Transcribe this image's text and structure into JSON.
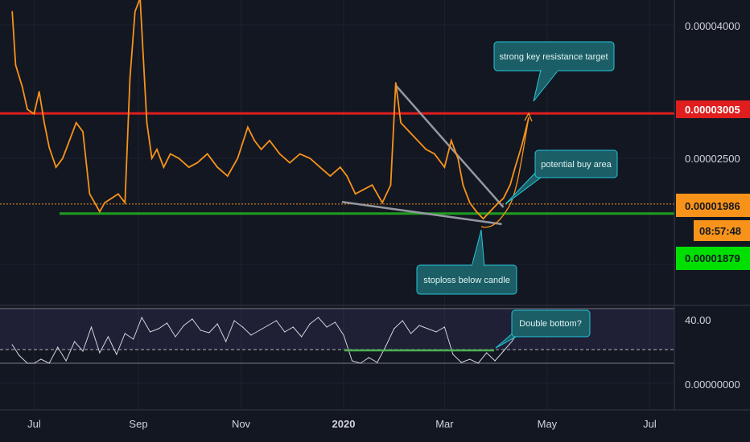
{
  "chart_data": [
    {
      "type": "line",
      "title": "",
      "x_ticks": [
        "Jul",
        "Sep",
        "Nov",
        "2020",
        "Mar",
        "May",
        "Jul"
      ],
      "y_ticks": [
        "0.00004000",
        "0.00002500"
      ],
      "price_labels": {
        "resistance": "0.00003005",
        "current": "0.00001986",
        "countdown": "08:57:48",
        "support": "0.00001879"
      },
      "colors": {
        "price": "#f7931a",
        "resistance": "#e01e1e",
        "support": "#1e9e1e",
        "trendline": "#9598a1",
        "callout": "#1b5e66",
        "callout_border": "#26c6da"
      },
      "series": [
        {
          "x": [
            "2019-06-18",
            "2019-06-20",
            "2019-06-24",
            "2019-06-27",
            "2019-07-01",
            "2019-07-04",
            "2019-07-07",
            "2019-07-10",
            "2019-07-14",
            "2019-07-18",
            "2019-07-22",
            "2019-07-26",
            "2019-07-30",
            "2019-08-03",
            "2019-08-06",
            "2019-08-09",
            "2019-08-12",
            "2019-08-16",
            "2019-08-20",
            "2019-08-24",
            "2019-08-27",
            "2019-08-30",
            "2019-09-02",
            "2019-09-06",
            "2019-09-09",
            "2019-09-12",
            "2019-09-16",
            "2019-09-20",
            "2019-09-25",
            "2019-10-01",
            "2019-10-06",
            "2019-10-12",
            "2019-10-18",
            "2019-10-24",
            "2019-10-30",
            "2019-11-05",
            "2019-11-09",
            "2019-11-13",
            "2019-11-18",
            "2019-11-24",
            "2019-11-30",
            "2019-12-06",
            "2019-12-12",
            "2019-12-18",
            "2019-12-24",
            "2019-12-30",
            "2020-01-03",
            "2020-01-08",
            "2020-01-13",
            "2020-01-18",
            "2020-01-24",
            "2020-01-29",
            "2020-02-01",
            "2020-02-04",
            "2020-02-09",
            "2020-02-14",
            "2020-02-19",
            "2020-02-24",
            "2020-03-01",
            "2020-03-05",
            "2020-03-09",
            "2020-03-12",
            "2020-03-16",
            "2020-03-20",
            "2020-03-24",
            "2020-03-28",
            "2020-04-01",
            "2020-04-05",
            "2020-04-09",
            "2020-04-12",
            "2020-04-16",
            "2020-04-20"
          ],
          "y": [
            4.15e-05,
            3.55e-05,
            3.3e-05,
            3.05e-05,
            3e-05,
            3.25e-05,
            2.9e-05,
            2.62e-05,
            2.4e-05,
            2.5e-05,
            2.7e-05,
            2.9e-05,
            2.8e-05,
            2.1e-05,
            2e-05,
            1.9e-05,
            2e-05,
            2.05e-05,
            2.1e-05,
            2e-05,
            3.4e-05,
            4.15e-05,
            4.3e-05,
            2.9e-05,
            2.5e-05,
            2.6e-05,
            2.4e-05,
            2.55e-05,
            2.5e-05,
            2.4e-05,
            2.45e-05,
            2.55e-05,
            2.4e-05,
            2.3e-05,
            2.5e-05,
            2.85e-05,
            2.7e-05,
            2.6e-05,
            2.7e-05,
            2.55e-05,
            2.45e-05,
            2.55e-05,
            2.5e-05,
            2.4e-05,
            2.3e-05,
            2.4e-05,
            2.3e-05,
            2.1e-05,
            2.15e-05,
            2.2e-05,
            2e-05,
            2.2e-05,
            3.35e-05,
            2.9e-05,
            2.8e-05,
            2.7e-05,
            2.6e-05,
            2.55e-05,
            2.4e-05,
            2.7e-05,
            2.5e-05,
            2.2e-05,
            2e-05,
            1.9e-05,
            1.82e-05,
            1.9e-05,
            1.98e-05,
            2.05e-05,
            2.2e-05,
            2.4e-05,
            2.65e-05,
            2.95e-05
          ]
        }
      ]
    },
    {
      "type": "line",
      "title": "",
      "y_ticks": [
        "40.00",
        "0.00000000"
      ],
      "series": [
        {
          "x": [
            "2019-06-18",
            "2019-06-22",
            "2019-06-27",
            "2019-07-01",
            "2019-07-05",
            "2019-07-10",
            "2019-07-15",
            "2019-07-20",
            "2019-07-25",
            "2019-07-30",
            "2019-08-04",
            "2019-08-09",
            "2019-08-14",
            "2019-08-19",
            "2019-08-24",
            "2019-08-29",
            "2019-09-03",
            "2019-09-08",
            "2019-09-13",
            "2019-09-18",
            "2019-09-23",
            "2019-09-28",
            "2019-10-03",
            "2019-10-08",
            "2019-10-13",
            "2019-10-18",
            "2019-10-23",
            "2019-10-28",
            "2019-11-02",
            "2019-11-07",
            "2019-11-12",
            "2019-11-17",
            "2019-11-22",
            "2019-11-27",
            "2019-12-02",
            "2019-12-07",
            "2019-12-12",
            "2019-12-17",
            "2019-12-22",
            "2019-12-27",
            "2020-01-01",
            "2020-01-06",
            "2020-01-11",
            "2020-01-16",
            "2020-01-21",
            "2020-01-26",
            "2020-01-31",
            "2020-02-05",
            "2020-02-10",
            "2020-02-15",
            "2020-02-20",
            "2020-02-25",
            "2020-03-01",
            "2020-03-06",
            "2020-03-11",
            "2020-03-16",
            "2020-03-21",
            "2020-03-26",
            "2020-03-31",
            "2020-04-05",
            "2020-04-10",
            "2020-04-15",
            "2020-04-20"
          ],
          "y": [
            48,
            35,
            22,
            12,
            30,
            18,
            45,
            28,
            52,
            40,
            70,
            38,
            58,
            36,
            62,
            55,
            82,
            64,
            68,
            75,
            58,
            72,
            80,
            66,
            63,
            74,
            52,
            78,
            70,
            60,
            66,
            72,
            78,
            64,
            70,
            58,
            74,
            82,
            70,
            76,
            60,
            28,
            22,
            32,
            26,
            46,
            68,
            78,
            62,
            72,
            68,
            64,
            70,
            36,
            26,
            30,
            24,
            38,
            28,
            40,
            52,
            68,
            74
          ]
        }
      ],
      "reference_levels": [
        30,
        20
      ],
      "annotations": [
        "Double bottom?"
      ]
    }
  ],
  "notes": {
    "resistance_note": "strong key resistance target",
    "buy_note": "potential buy area",
    "stoploss_note": "stoploss below candle",
    "double_bottom_note": "Double bottom?"
  }
}
